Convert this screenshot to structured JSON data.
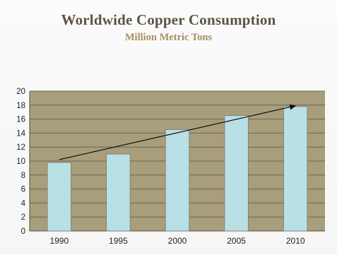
{
  "title": "Worldwide Copper Consumption",
  "subtitle": "Million Metric Tons",
  "colors": {
    "plot_background": "#a89e7c",
    "bar_fill": "#b9e0e4",
    "bar_stroke": "#7e7a6a",
    "gridline": "#6b6555",
    "arrow": "#111111",
    "title": "#5d5341",
    "subtitle": "#a98e63"
  },
  "chart_data": {
    "type": "bar",
    "categories": [
      "1990",
      "1995",
      "2000",
      "2005",
      "2010"
    ],
    "values": [
      9.8,
      11.0,
      14.5,
      16.5,
      17.8
    ],
    "title": "Worldwide Copper Consumption",
    "subtitle": "Million Metric Tons",
    "xlabel": "",
    "ylabel": "",
    "ylim": [
      0,
      20
    ],
    "yticks": [
      0,
      2,
      4,
      6,
      8,
      10,
      12,
      14,
      16,
      18,
      20
    ],
    "grid": true,
    "legend": "none",
    "annotations": [
      {
        "type": "arrow",
        "from": {
          "x": "1990",
          "y": 10.2
        },
        "to": {
          "x": "2010",
          "y": 17.9
        }
      }
    ]
  }
}
